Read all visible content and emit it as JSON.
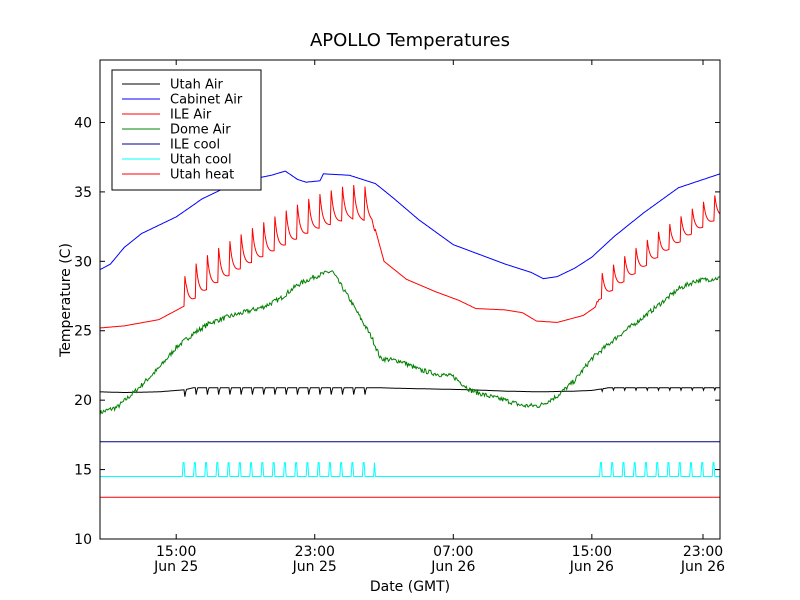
{
  "chart_data": {
    "type": "line",
    "title": "APOLLO Temperatures",
    "xlabel": "Date (GMT)",
    "ylabel": "Temperature (C)",
    "xunit": "hours since Jun 25 00:00 GMT",
    "xlim": [
      10.6,
      46.4
    ],
    "ylim": [
      10,
      44.5
    ],
    "grid": false,
    "legend_position": "top-left",
    "yticks": [
      10,
      15,
      20,
      25,
      30,
      35,
      40
    ],
    "xticks": [
      {
        "x": 15,
        "time": "15:00",
        "date": "Jun 25"
      },
      {
        "x": 23,
        "time": "23:00",
        "date": "Jun 25"
      },
      {
        "x": 31,
        "time": "07:00",
        "date": "Jun 26"
      },
      {
        "x": 39,
        "time": "15:00",
        "date": "Jun 26"
      },
      {
        "x": 47,
        "time": "23:00",
        "date": "Jun 26"
      }
    ],
    "series": [
      {
        "name": "Utah Air",
        "color": "#000000",
        "points": [
          [
            10.6,
            20.6
          ],
          [
            12,
            20.55
          ],
          [
            14,
            20.6
          ],
          [
            15.5,
            20.75
          ],
          [
            16,
            20.9
          ],
          [
            17,
            20.9
          ],
          [
            19,
            20.9
          ],
          [
            21,
            20.9
          ],
          [
            23,
            20.9
          ],
          [
            25,
            20.9
          ],
          [
            26,
            20.9
          ],
          [
            26.5,
            20.9
          ],
          [
            28,
            20.85
          ],
          [
            30,
            20.8
          ],
          [
            32,
            20.75
          ],
          [
            34,
            20.65
          ],
          [
            36,
            20.6
          ],
          [
            38,
            20.65
          ],
          [
            39,
            20.7
          ],
          [
            40,
            20.9
          ],
          [
            42,
            20.9
          ],
          [
            44,
            20.9
          ],
          [
            46,
            20.9
          ]
        ],
        "sawtooth": {
          "spans": [
            [
              15.5,
              26.5
            ],
            [
              39.5,
              46.4
            ]
          ],
          "period": 0.65,
          "depth": 0.5
        }
      },
      {
        "name": "Cabinet Air",
        "color": "#0000ff",
        "points": [
          [
            10.6,
            29.4
          ],
          [
            11.2,
            29.8
          ],
          [
            12,
            31.0
          ],
          [
            13,
            32.0
          ],
          [
            15,
            33.2
          ],
          [
            16.5,
            34.5
          ],
          [
            18.5,
            35.7
          ],
          [
            20.5,
            36.2
          ],
          [
            21.3,
            36.5
          ],
          [
            22,
            35.9
          ],
          [
            22.5,
            35.7
          ],
          [
            23.3,
            35.8
          ],
          [
            23.5,
            36.3
          ],
          [
            25,
            36.2
          ],
          [
            26.5,
            35.6
          ],
          [
            27.5,
            34.6
          ],
          [
            29,
            33.0
          ],
          [
            31,
            31.2
          ],
          [
            34,
            29.8
          ],
          [
            35.5,
            29.2
          ],
          [
            36.2,
            28.75
          ],
          [
            37,
            28.9
          ],
          [
            38,
            29.5
          ],
          [
            39,
            30.3
          ],
          [
            40.3,
            31.8
          ],
          [
            42,
            33.5
          ],
          [
            44,
            35.3
          ],
          [
            46.4,
            36.3
          ]
        ],
        "sawtooth": null
      },
      {
        "name": "ILE Air",
        "color": "#ff0000",
        "points": [
          [
            10.6,
            25.2
          ],
          [
            12,
            25.35
          ],
          [
            14,
            25.8
          ],
          [
            15.5,
            26.8
          ],
          [
            15.6,
            27.2
          ],
          [
            17,
            28.5
          ],
          [
            19,
            30.0
          ],
          [
            21,
            31.3
          ],
          [
            23,
            32.6
          ],
          [
            25,
            33.4
          ],
          [
            26.3,
            33.2
          ],
          [
            27,
            30.0
          ],
          [
            28.3,
            28.7
          ],
          [
            30,
            27.8
          ],
          [
            31.3,
            27.2
          ],
          [
            32.3,
            26.6
          ],
          [
            34,
            26.5
          ],
          [
            35,
            26.3
          ],
          [
            35.8,
            25.7
          ],
          [
            37,
            25.6
          ],
          [
            38.5,
            26.1
          ],
          [
            39.2,
            26.7
          ],
          [
            39.4,
            27.5
          ],
          [
            41,
            29.0
          ],
          [
            43,
            30.8
          ],
          [
            45,
            32.5
          ],
          [
            46.4,
            33.5
          ]
        ],
        "sawtooth": {
          "spans": [
            [
              15.5,
              26.5
            ],
            [
              39.3,
              46.4
            ]
          ],
          "period": 0.65,
          "amplitude": 2.5
        }
      },
      {
        "name": "Dome Air",
        "color": "#008000",
        "points": [
          [
            10.6,
            19.1
          ],
          [
            11.6,
            19.5
          ],
          [
            12.6,
            20.6
          ],
          [
            14,
            22.3
          ],
          [
            15,
            23.8
          ],
          [
            16,
            24.8
          ],
          [
            17,
            25.6
          ],
          [
            18,
            26.0
          ],
          [
            20,
            26.7
          ],
          [
            21,
            27.3
          ],
          [
            22,
            28.3
          ],
          [
            23,
            28.9
          ],
          [
            24,
            29.3
          ],
          [
            25,
            27.3
          ],
          [
            26.3,
            24.5
          ],
          [
            26.8,
            23.0
          ],
          [
            28,
            22.8
          ],
          [
            29,
            22.2
          ],
          [
            30,
            21.9
          ],
          [
            31,
            21.7
          ],
          [
            32,
            20.7
          ],
          [
            33,
            20.3
          ],
          [
            34,
            20.0
          ],
          [
            35,
            19.6
          ],
          [
            36,
            19.6
          ],
          [
            37,
            20.3
          ],
          [
            38,
            21.4
          ],
          [
            39,
            23.0
          ],
          [
            40.5,
            24.6
          ],
          [
            42,
            26.0
          ],
          [
            43,
            27.0
          ],
          [
            44,
            28.0
          ],
          [
            45,
            28.6
          ],
          [
            46.4,
            28.8
          ]
        ],
        "sawtooth": null
      },
      {
        "name": "ILE cool",
        "color": "#000080",
        "points": [
          [
            10.6,
            17.0
          ],
          [
            46.4,
            17.0
          ]
        ],
        "sawtooth": null
      },
      {
        "name": "Utah cool",
        "color": "#00ffff",
        "points": [
          [
            10.6,
            14.5
          ],
          [
            46.4,
            14.5
          ]
        ],
        "pulses": {
          "spans": [
            [
              15.4,
              26.5
            ],
            [
              39.2,
              46.4
            ]
          ],
          "period": 0.65,
          "high": 15.5,
          "width": 0.1
        }
      },
      {
        "name": "Utah heat",
        "color": "#ff0000",
        "points": [
          [
            10.6,
            13.0
          ],
          [
            46.4,
            13.0
          ]
        ],
        "sawtooth": null
      }
    ]
  }
}
